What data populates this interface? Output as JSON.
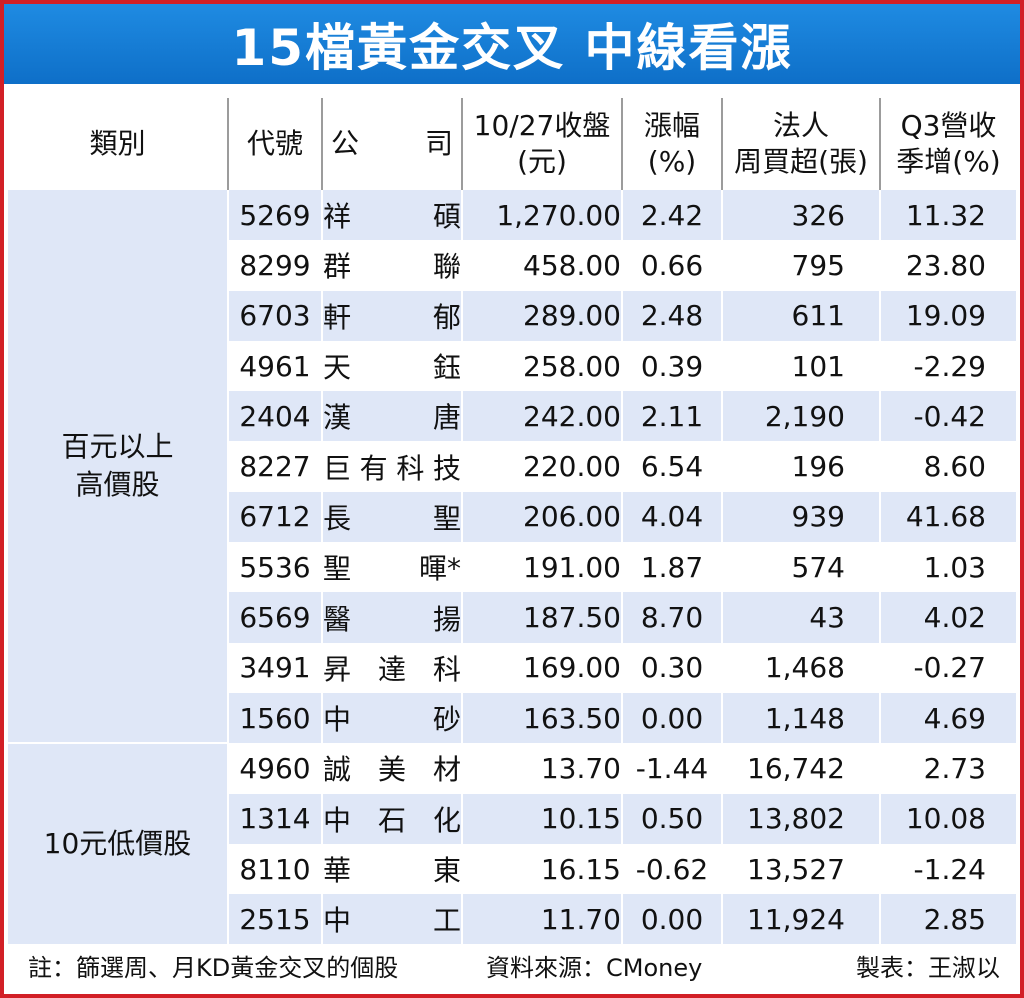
{
  "title": "15檔黃金交叉 中線看漲",
  "headers": {
    "category": "類別",
    "code": "代號",
    "company_left": "公",
    "company_right": "司",
    "close_line1": "10/27收盤",
    "close_line2": "(元)",
    "change_line1": "漲幅",
    "change_line2": "(%)",
    "inst_line1": "法人",
    "inst_line2": "周買超(張)",
    "rev_line1": "Q3營收",
    "rev_line2": "季增(%)"
  },
  "groups": [
    {
      "label_line1": "百元以上",
      "label_line2": "高價股",
      "rows": [
        {
          "code": "5269",
          "name": [
            "祥",
            "碩"
          ],
          "close": "1,270.00",
          "change": "2.42",
          "inst": "326",
          "rev": "11.32"
        },
        {
          "code": "8299",
          "name": [
            "群",
            "聯"
          ],
          "close": "458.00",
          "change": "0.66",
          "inst": "795",
          "rev": "23.80"
        },
        {
          "code": "6703",
          "name": [
            "軒",
            "郁"
          ],
          "close": "289.00",
          "change": "2.48",
          "inst": "611",
          "rev": "19.09"
        },
        {
          "code": "4961",
          "name": [
            "天",
            "鈺"
          ],
          "close": "258.00",
          "change": "0.39",
          "inst": "101",
          "rev": "-2.29"
        },
        {
          "code": "2404",
          "name": [
            "漢",
            "唐"
          ],
          "close": "242.00",
          "change": "2.11",
          "inst": "2,190",
          "rev": "-0.42"
        },
        {
          "code": "8227",
          "name": [
            "巨",
            "有",
            "科",
            "技"
          ],
          "close": "220.00",
          "change": "6.54",
          "inst": "196",
          "rev": "8.60"
        },
        {
          "code": "6712",
          "name": [
            "長",
            "聖"
          ],
          "close": "206.00",
          "change": "4.04",
          "inst": "939",
          "rev": "41.68"
        },
        {
          "code": "5536",
          "name": [
            "聖",
            "暉*"
          ],
          "close": "191.00",
          "change": "1.87",
          "inst": "574",
          "rev": "1.03"
        },
        {
          "code": "6569",
          "name": [
            "醫",
            "揚"
          ],
          "close": "187.50",
          "change": "8.70",
          "inst": "43",
          "rev": "4.02"
        },
        {
          "code": "3491",
          "name": [
            "昇",
            "達",
            "科"
          ],
          "close": "169.00",
          "change": "0.30",
          "inst": "1,468",
          "rev": "-0.27"
        },
        {
          "code": "1560",
          "name": [
            "中",
            "砂"
          ],
          "close": "163.50",
          "change": "0.00",
          "inst": "1,148",
          "rev": "4.69"
        }
      ]
    },
    {
      "label_line1": "10元低價股",
      "label_line2": "",
      "rows": [
        {
          "code": "4960",
          "name": [
            "誠",
            "美",
            "材"
          ],
          "close": "13.70",
          "change": "-1.44",
          "inst": "16,742",
          "rev": "2.73"
        },
        {
          "code": "1314",
          "name": [
            "中",
            "石",
            "化"
          ],
          "close": "10.15",
          "change": "0.50",
          "inst": "13,802",
          "rev": "10.08"
        },
        {
          "code": "8110",
          "name": [
            "華",
            "東"
          ],
          "close": "16.15",
          "change": "-0.62",
          "inst": "13,527",
          "rev": "-1.24"
        },
        {
          "code": "2515",
          "name": [
            "中",
            "工"
          ],
          "close": "11.70",
          "change": "0.00",
          "inst": "11,924",
          "rev": "2.85"
        }
      ]
    }
  ],
  "footer": {
    "note": "註：篩選周、月KD黃金交叉的個股",
    "source": "資料來源：CMoney",
    "maker": "製表：王淑以"
  },
  "colors": {
    "border": "#d21f26",
    "title_bg": "#1f8be2",
    "stripe": "#dfe7f7"
  }
}
